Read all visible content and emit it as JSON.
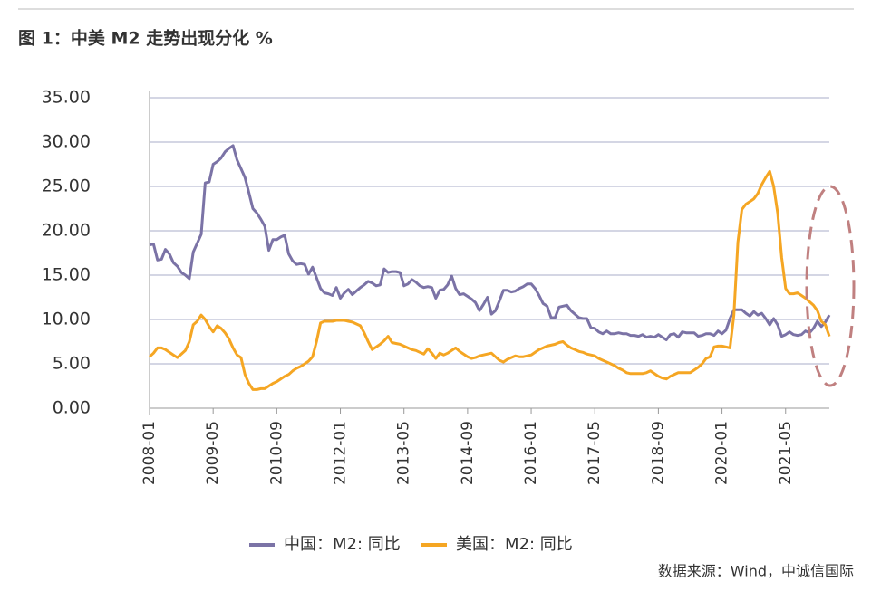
{
  "chart_data": {
    "type": "line",
    "title": "图 1：中美 M2 走势出现分化 %",
    "source": "数据来源：Wind，中诚信国际",
    "categories": [
      "2008-01",
      null,
      null,
      null,
      null,
      null,
      null,
      null,
      null,
      null,
      null,
      null,
      null,
      null,
      null,
      null,
      "2009-05",
      null,
      null,
      null,
      null,
      null,
      null,
      null,
      null,
      null,
      null,
      null,
      null,
      null,
      null,
      null,
      "2010-09",
      null,
      null,
      null,
      null,
      null,
      null,
      null,
      null,
      null,
      null,
      null,
      null,
      null,
      null,
      null,
      "2012-01",
      null,
      null,
      null,
      null,
      null,
      null,
      null,
      null,
      null,
      null,
      null,
      null,
      null,
      null,
      null,
      "2013-05",
      null,
      null,
      null,
      null,
      null,
      null,
      null,
      null,
      null,
      null,
      null,
      null,
      null,
      null,
      null,
      "2014-09",
      null,
      null,
      null,
      null,
      null,
      null,
      null,
      null,
      null,
      null,
      null,
      null,
      null,
      null,
      null,
      "2016-01",
      null,
      null,
      null,
      null,
      null,
      null,
      null,
      null,
      null,
      null,
      null,
      null,
      null,
      null,
      null,
      "2017-05",
      null,
      null,
      null,
      null,
      null,
      null,
      null,
      null,
      null,
      null,
      null,
      null,
      null,
      null,
      null,
      "2018-09",
      null,
      null,
      null,
      null,
      null,
      null,
      null,
      null,
      null,
      null,
      null,
      null,
      null,
      null,
      null,
      "2020-01",
      null,
      null,
      null,
      null,
      null,
      null,
      null,
      null,
      null,
      null,
      null,
      null,
      null,
      null,
      null,
      "2021-05",
      null,
      null,
      null,
      null,
      null,
      null,
      null,
      null,
      null,
      null,
      null
    ],
    "series": [
      {
        "name": "中国：M2: 同比",
        "color": "#7b73a6",
        "values": [
          18.4,
          18.5,
          16.7,
          16.8,
          17.9,
          17.4,
          16.4,
          16.0,
          15.3,
          15.0,
          14.6,
          17.6,
          18.6,
          19.6,
          25.4,
          25.5,
          27.5,
          27.8,
          28.2,
          28.9,
          29.3,
          29.6,
          28.0,
          27.0,
          26.0,
          24.3,
          22.5,
          22.0,
          21.3,
          20.5,
          17.8,
          19.0,
          19.0,
          19.3,
          19.5,
          17.4,
          16.6,
          16.2,
          16.3,
          16.2,
          15.1,
          15.9,
          14.7,
          13.5,
          13.0,
          12.9,
          12.7,
          13.6,
          12.4,
          13.0,
          13.4,
          12.8,
          13.2,
          13.6,
          13.9,
          14.3,
          14.1,
          13.8,
          13.9,
          15.7,
          15.3,
          15.4,
          15.4,
          15.3,
          13.8,
          14.0,
          14.5,
          14.2,
          13.8,
          13.6,
          13.7,
          13.6,
          12.4,
          13.3,
          13.4,
          13.9,
          14.9,
          13.5,
          12.8,
          12.9,
          12.6,
          12.3,
          11.9,
          11.0,
          11.7,
          12.5,
          10.6,
          11.0,
          12.1,
          13.3,
          13.3,
          13.1,
          13.2,
          13.5,
          13.7,
          14.0,
          14.0,
          13.5,
          12.7,
          11.8,
          11.5,
          10.2,
          10.2,
          11.4,
          11.5,
          11.6,
          11.0,
          10.6,
          10.2,
          10.1,
          10.1,
          9.1,
          9.0,
          8.6,
          8.4,
          8.7,
          8.4,
          8.4,
          8.5,
          8.4,
          8.4,
          8.2,
          8.2,
          8.1,
          8.3,
          8.0,
          8.1,
          8.0,
          8.3,
          8.0,
          7.7,
          8.3,
          8.4,
          8.0,
          8.6,
          8.5,
          8.5,
          8.5,
          8.1,
          8.2,
          8.4,
          8.4,
          8.2,
          8.7,
          8.4,
          8.8,
          10.1,
          11.1,
          11.1,
          11.1,
          10.7,
          10.4,
          10.9,
          10.5,
          10.7,
          10.1,
          9.4,
          10.1,
          9.4,
          8.1,
          8.3,
          8.6,
          8.3,
          8.2,
          8.3,
          8.7,
          8.5,
          9.0,
          9.8,
          9.2,
          9.7,
          10.5
        ]
      },
      {
        "name": "美国：M2: 同比",
        "color": "#f5a623",
        "values": [
          5.8,
          6.2,
          6.8,
          6.8,
          6.6,
          6.3,
          6.0,
          5.7,
          6.1,
          6.5,
          7.5,
          9.4,
          9.8,
          10.5,
          10.0,
          9.2,
          8.6,
          9.3,
          9.0,
          8.5,
          7.8,
          6.8,
          6.0,
          5.7,
          3.8,
          2.8,
          2.1,
          2.1,
          2.2,
          2.2,
          2.5,
          2.8,
          3.0,
          3.3,
          3.6,
          3.8,
          4.2,
          4.5,
          4.7,
          5.0,
          5.3,
          5.8,
          7.5,
          9.6,
          9.8,
          9.8,
          9.8,
          9.9,
          9.9,
          9.9,
          9.8,
          9.7,
          9.5,
          9.3,
          8.5,
          7.5,
          6.6,
          6.9,
          7.2,
          7.6,
          8.1,
          7.4,
          7.3,
          7.2,
          7.0,
          6.8,
          6.6,
          6.5,
          6.3,
          6.1,
          6.7,
          6.2,
          5.6,
          6.2,
          6.0,
          6.2,
          6.5,
          6.8,
          6.4,
          6.1,
          5.8,
          5.6,
          5.7,
          5.9,
          6.0,
          6.1,
          6.2,
          5.8,
          5.4,
          5.2,
          5.5,
          5.7,
          5.9,
          5.8,
          5.8,
          5.9,
          6.0,
          6.3,
          6.6,
          6.8,
          7.0,
          7.1,
          7.2,
          7.4,
          7.5,
          7.1,
          6.8,
          6.6,
          6.4,
          6.3,
          6.1,
          6.0,
          5.9,
          5.6,
          5.4,
          5.2,
          5.0,
          4.8,
          4.5,
          4.3,
          4.0,
          3.9,
          3.9,
          3.9,
          3.9,
          4.0,
          4.2,
          3.9,
          3.6,
          3.4,
          3.3,
          3.6,
          3.8,
          4.0,
          4.0,
          4.0,
          4.0,
          4.3,
          4.6,
          5.0,
          5.6,
          5.8,
          6.9,
          7.0,
          7.0,
          6.9,
          6.8,
          10.5,
          18.7,
          22.4,
          23.0,
          23.3,
          23.6,
          24.2,
          25.2,
          26.0,
          26.7,
          25.0,
          22.0,
          17.0,
          13.5,
          12.9,
          12.9,
          13.0,
          12.7,
          12.4,
          12.0,
          11.6,
          11.0,
          9.8,
          9.4,
          8.1
        ]
      }
    ],
    "ylim": [
      0,
      35
    ],
    "yticks": [
      {
        "value": 0,
        "label": "0.00"
      },
      {
        "value": 5,
        "label": "5.00"
      },
      {
        "value": 10,
        "label": "10.00"
      },
      {
        "value": 15,
        "label": "15.00"
      },
      {
        "value": 20,
        "label": "20.00"
      },
      {
        "value": 25,
        "label": "25.00"
      },
      {
        "value": 30,
        "label": "30.00"
      },
      {
        "value": 35,
        "label": "35.00"
      }
    ],
    "grid": true
  }
}
